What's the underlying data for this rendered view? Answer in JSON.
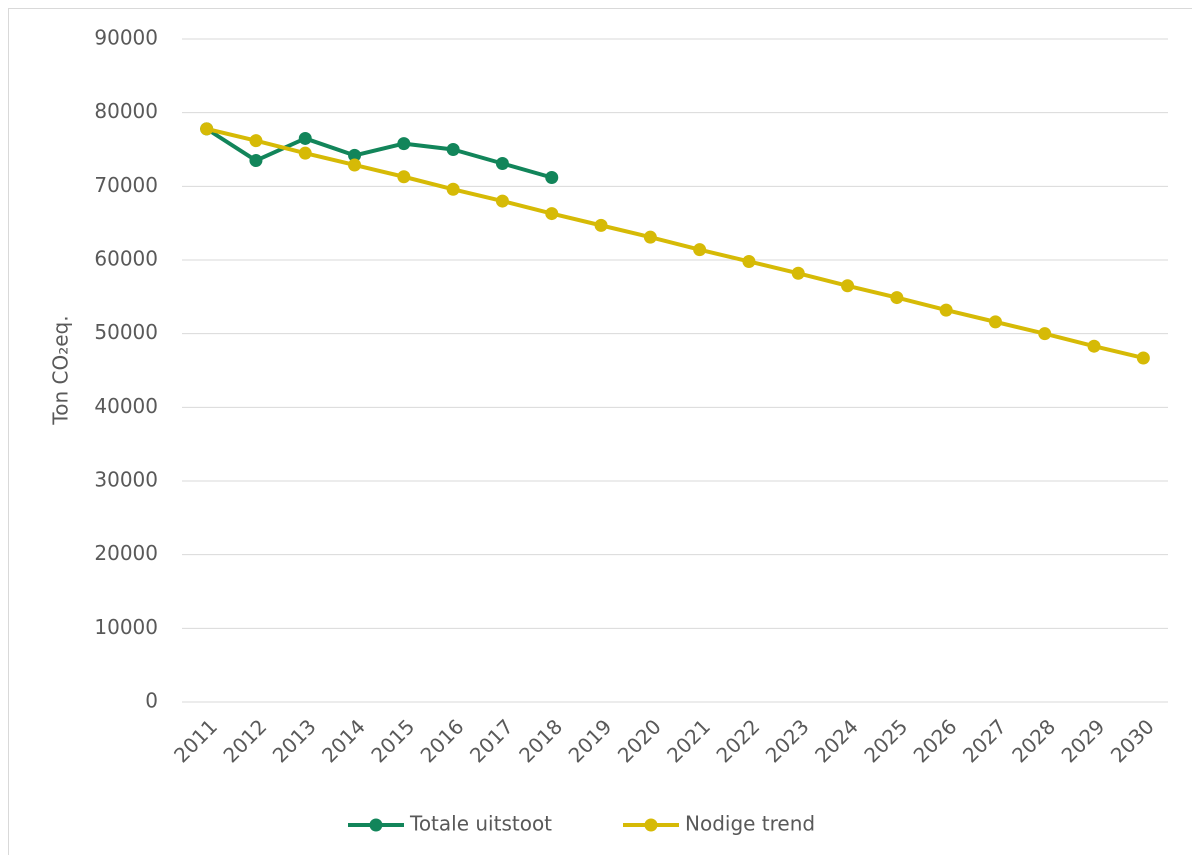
{
  "chart_data": {
    "type": "line",
    "y_label": "Ton CO₂eq.",
    "categories": [
      "2011",
      "2012",
      "2013",
      "2014",
      "2015",
      "2016",
      "2017",
      "2018",
      "2019",
      "2020",
      "2021",
      "2022",
      "2023",
      "2024",
      "2025",
      "2026",
      "2027",
      "2028",
      "2029",
      "2030"
    ],
    "series": [
      {
        "name": "Totale uitstoot",
        "color": "#12855a",
        "values": [
          77800,
          73500,
          76500,
          74200,
          75800,
          75000,
          73100,
          71200,
          null,
          null,
          null,
          null,
          null,
          null,
          null,
          null,
          null,
          null,
          null,
          null
        ]
      },
      {
        "name": "Nodige trend",
        "color": "#d6ba06",
        "values": [
          77800,
          76200,
          74500,
          72900,
          71300,
          69600,
          68000,
          66300,
          64700,
          63100,
          61400,
          59800,
          58200,
          56500,
          54900,
          53200,
          51600,
          50000,
          48300,
          46700
        ]
      }
    ],
    "ylim": [
      0,
      90000
    ],
    "yticks": [
      0,
      10000,
      20000,
      30000,
      40000,
      50000,
      60000,
      70000,
      80000,
      90000
    ],
    "grid": true,
    "legend": "bottom"
  }
}
